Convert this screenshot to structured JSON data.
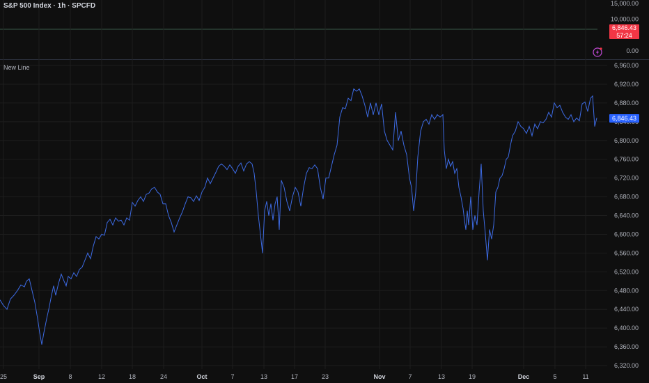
{
  "header": {
    "title": "S&P 500 Index · 1h · SPCFD",
    "study_label": "New Line"
  },
  "upper_pane": {
    "ticks": [
      {
        "label": "15,000.00",
        "value": 15000
      },
      {
        "label": "10,000.00",
        "value": 10000
      },
      {
        "label": "0.00",
        "value": 0
      }
    ],
    "badge_price": "6,846.43",
    "badge_countdown": "57:24",
    "icon": "flash-icon"
  },
  "price_badge": "6,846.43",
  "colors": {
    "background": "#0f0f0f",
    "grid": "#1d1d1d",
    "line": "#3d6be4",
    "badge": "#2962ff",
    "red_badge": "#f23645",
    "text": "#b2b5be"
  },
  "chart_data": {
    "type": "line",
    "title": "S&P 500 Index · 1h · SPCFD",
    "last_value": 6846.43,
    "ylim": [
      6300,
      6980
    ],
    "yticks": [
      6320,
      6360,
      6400,
      6440,
      6480,
      6520,
      6560,
      6600,
      6640,
      6680,
      6720,
      6760,
      6800,
      6840,
      6880,
      6920,
      6960
    ],
    "ytick_labels": [
      "6,320.00",
      "6,360.00",
      "6,400.00",
      "6,440.00",
      "6,480.00",
      "6,520.00",
      "6,560.00",
      "6,600.00",
      "6,640.00",
      "6,680.00",
      "6,720.00",
      "6,760.00",
      "6,800.00",
      "6,840.00",
      "6,880.00",
      "6,920.00",
      "6,960.00"
    ],
    "xlim": [
      0,
      932
    ],
    "xticks": [
      {
        "label": "25",
        "pos": 5,
        "bold": false
      },
      {
        "label": "Sep",
        "pos": 56,
        "bold": true
      },
      {
        "label": "8",
        "pos": 101,
        "bold": false
      },
      {
        "label": "12",
        "pos": 146,
        "bold": false
      },
      {
        "label": "18",
        "pos": 190,
        "bold": false
      },
      {
        "label": "24",
        "pos": 235,
        "bold": false
      },
      {
        "label": "Oct",
        "pos": 290,
        "bold": true
      },
      {
        "label": "7",
        "pos": 334,
        "bold": false
      },
      {
        "label": "13",
        "pos": 379,
        "bold": false
      },
      {
        "label": "17",
        "pos": 423,
        "bold": false
      },
      {
        "label": "23",
        "pos": 467,
        "bold": false
      },
      {
        "label": "Nov",
        "pos": 545,
        "bold": true
      },
      {
        "label": "7",
        "pos": 589,
        "bold": false
      },
      {
        "label": "13",
        "pos": 634,
        "bold": false
      },
      {
        "label": "19",
        "pos": 678,
        "bold": false
      },
      {
        "label": "Dec",
        "pos": 752,
        "bold": true
      },
      {
        "label": "5",
        "pos": 797,
        "bold": false
      },
      {
        "label": "11",
        "pos": 841,
        "bold": false
      }
    ],
    "series": [
      {
        "points": [
          [
            0,
            6460
          ],
          [
            5,
            6448
          ],
          [
            10,
            6440
          ],
          [
            15,
            6462
          ],
          [
            20,
            6470
          ],
          [
            25,
            6480
          ],
          [
            30,
            6492
          ],
          [
            35,
            6488
          ],
          [
            38,
            6500
          ],
          [
            42,
            6505
          ],
          [
            46,
            6480
          ],
          [
            50,
            6455
          ],
          [
            54,
            6420
          ],
          [
            57,
            6390
          ],
          [
            60,
            6365
          ],
          [
            63,
            6390
          ],
          [
            67,
            6420
          ],
          [
            70,
            6440
          ],
          [
            74,
            6470
          ],
          [
            77,
            6490
          ],
          [
            80,
            6470
          ],
          [
            84,
            6495
          ],
          [
            88,
            6515
          ],
          [
            92,
            6500
          ],
          [
            95,
            6490
          ],
          [
            98,
            6510
          ],
          [
            102,
            6505
          ],
          [
            106,
            6518
          ],
          [
            110,
            6510
          ],
          [
            114,
            6525
          ],
          [
            118,
            6530
          ],
          [
            122,
            6545
          ],
          [
            126,
            6560
          ],
          [
            130,
            6548
          ],
          [
            134,
            6575
          ],
          [
            138,
            6595
          ],
          [
            142,
            6590
          ],
          [
            146,
            6600
          ],
          [
            150,
            6598
          ],
          [
            154,
            6625
          ],
          [
            158,
            6632
          ],
          [
            162,
            6620
          ],
          [
            166,
            6635
          ],
          [
            170,
            6628
          ],
          [
            174,
            6630
          ],
          [
            178,
            6620
          ],
          [
            182,
            6635
          ],
          [
            186,
            6630
          ],
          [
            190,
            6668
          ],
          [
            194,
            6660
          ],
          [
            198,
            6672
          ],
          [
            202,
            6680
          ],
          [
            206,
            6670
          ],
          [
            210,
            6685
          ],
          [
            214,
            6688
          ],
          [
            218,
            6697
          ],
          [
            222,
            6700
          ],
          [
            226,
            6690
          ],
          [
            230,
            6685
          ],
          [
            234,
            6665
          ],
          [
            238,
            6665
          ],
          [
            242,
            6640
          ],
          [
            246,
            6625
          ],
          [
            250,
            6605
          ],
          [
            254,
            6620
          ],
          [
            258,
            6635
          ],
          [
            262,
            6648
          ],
          [
            266,
            6665
          ],
          [
            270,
            6680
          ],
          [
            274,
            6678
          ],
          [
            278,
            6670
          ],
          [
            282,
            6682
          ],
          [
            286,
            6672
          ],
          [
            290,
            6690
          ],
          [
            294,
            6700
          ],
          [
            298,
            6720
          ],
          [
            302,
            6708
          ],
          [
            306,
            6720
          ],
          [
            310,
            6732
          ],
          [
            314,
            6745
          ],
          [
            318,
            6750
          ],
          [
            322,
            6745
          ],
          [
            326,
            6738
          ],
          [
            330,
            6748
          ],
          [
            334,
            6740
          ],
          [
            338,
            6730
          ],
          [
            342,
            6745
          ],
          [
            346,
            6752
          ],
          [
            350,
            6735
          ],
          [
            354,
            6750
          ],
          [
            358,
            6755
          ],
          [
            362,
            6750
          ],
          [
            365,
            6730
          ],
          [
            368,
            6690
          ],
          [
            371,
            6640
          ],
          [
            374,
            6600
          ],
          [
            377,
            6560
          ],
          [
            380,
            6650
          ],
          [
            383,
            6670
          ],
          [
            386,
            6640
          ],
          [
            389,
            6665
          ],
          [
            392,
            6630
          ],
          [
            395,
            6665
          ],
          [
            398,
            6680
          ],
          [
            401,
            6610
          ],
          [
            404,
            6715
          ],
          [
            408,
            6700
          ],
          [
            412,
            6670
          ],
          [
            416,
            6650
          ],
          [
            420,
            6680
          ],
          [
            424,
            6700
          ],
          [
            428,
            6690
          ],
          [
            432,
            6660
          ],
          [
            436,
            6700
          ],
          [
            440,
            6730
          ],
          [
            444,
            6742
          ],
          [
            448,
            6740
          ],
          [
            452,
            6748
          ],
          [
            456,
            6740
          ],
          [
            460,
            6700
          ],
          [
            464,
            6675
          ],
          [
            468,
            6720
          ],
          [
            472,
            6720
          ],
          [
            476,
            6745
          ],
          [
            480,
            6770
          ],
          [
            484,
            6790
          ],
          [
            488,
            6850
          ],
          [
            492,
            6870
          ],
          [
            496,
            6868
          ],
          [
            500,
            6890
          ],
          [
            504,
            6885
          ],
          [
            508,
            6910
          ],
          [
            512,
            6905
          ],
          [
            516,
            6910
          ],
          [
            520,
            6895
          ],
          [
            524,
            6875
          ],
          [
            528,
            6850
          ],
          [
            532,
            6880
          ],
          [
            536,
            6855
          ],
          [
            540,
            6880
          ],
          [
            544,
            6855
          ],
          [
            548,
            6878
          ],
          [
            552,
            6820
          ],
          [
            556,
            6800
          ],
          [
            560,
            6790
          ],
          [
            564,
            6780
          ],
          [
            568,
            6860
          ],
          [
            572,
            6800
          ],
          [
            576,
            6820
          ],
          [
            580,
            6790
          ],
          [
            584,
            6770
          ],
          [
            588,
            6720
          ],
          [
            591,
            6700
          ],
          [
            594,
            6650
          ],
          [
            597,
            6690
          ],
          [
            600,
            6765
          ],
          [
            604,
            6820
          ],
          [
            608,
            6840
          ],
          [
            612,
            6845
          ],
          [
            616,
            6835
          ],
          [
            620,
            6855
          ],
          [
            624,
            6845
          ],
          [
            628,
            6855
          ],
          [
            632,
            6850
          ],
          [
            636,
            6855
          ],
          [
            638,
            6780
          ],
          [
            641,
            6740
          ],
          [
            644,
            6760
          ],
          [
            647,
            6745
          ],
          [
            650,
            6755
          ],
          [
            653,
            6730
          ],
          [
            656,
            6740
          ],
          [
            659,
            6700
          ],
          [
            662,
            6680
          ],
          [
            665,
            6655
          ],
          [
            667,
            6630
          ],
          [
            669,
            6610
          ],
          [
            671,
            6650
          ],
          [
            673,
            6620
          ],
          [
            676,
            6680
          ],
          [
            679,
            6610
          ],
          [
            682,
            6640
          ],
          [
            685,
            6620
          ],
          [
            688,
            6690
          ],
          [
            691,
            6750
          ],
          [
            694,
            6650
          ],
          [
            697,
            6600
          ],
          [
            700,
            6545
          ],
          [
            703,
            6610
          ],
          [
            706,
            6590
          ],
          [
            709,
            6620
          ],
          [
            712,
            6690
          ],
          [
            715,
            6700
          ],
          [
            718,
            6720
          ],
          [
            721,
            6725
          ],
          [
            724,
            6740
          ],
          [
            727,
            6760
          ],
          [
            730,
            6765
          ],
          [
            733,
            6790
          ],
          [
            736,
            6810
          ],
          [
            740,
            6820
          ],
          [
            744,
            6840
          ],
          [
            748,
            6830
          ],
          [
            752,
            6825
          ],
          [
            756,
            6815
          ],
          [
            760,
            6830
          ],
          [
            764,
            6810
          ],
          [
            768,
            6835
          ],
          [
            772,
            6825
          ],
          [
            776,
            6840
          ],
          [
            780,
            6838
          ],
          [
            784,
            6845
          ],
          [
            788,
            6860
          ],
          [
            792,
            6850
          ],
          [
            796,
            6880
          ],
          [
            800,
            6870
          ],
          [
            804,
            6875
          ],
          [
            808,
            6860
          ],
          [
            812,
            6850
          ],
          [
            816,
            6845
          ],
          [
            820,
            6855
          ],
          [
            824,
            6840
          ],
          [
            828,
            6848
          ],
          [
            832,
            6842
          ],
          [
            836,
            6878
          ],
          [
            840,
            6882
          ],
          [
            844,
            6862
          ],
          [
            848,
            6890
          ],
          [
            851,
            6895
          ],
          [
            854,
            6830
          ],
          [
            857,
            6848
          ]
        ]
      }
    ]
  }
}
